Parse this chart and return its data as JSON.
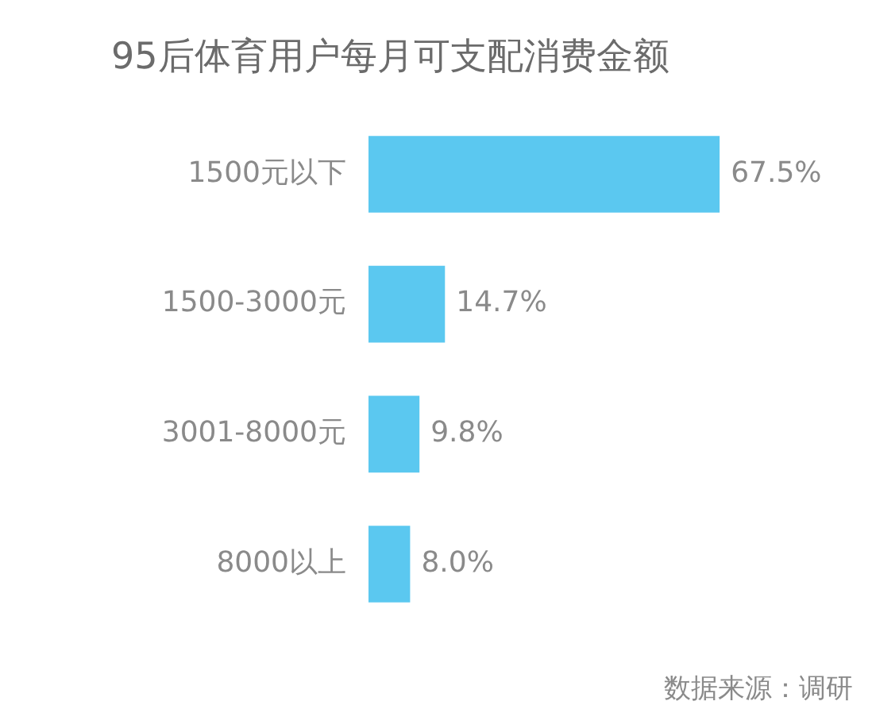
{
  "chart_data": {
    "type": "bar",
    "orientation": "horizontal",
    "title": "95后体育用户每月可支配消费金额",
    "categories": [
      "1500元以下",
      "1500-3000元",
      "3001-8000元",
      "8000以上"
    ],
    "values": [
      67.5,
      14.7,
      9.8,
      8.0
    ],
    "color": "#5bc8f0",
    "value_labels": [
      "67.5%",
      "14.7%",
      "9.8%",
      "8.0%"
    ],
    "tick_labels": "y",
    "grid": false,
    "legend": false,
    "annotations": [
      "数据来源：调研"
    ]
  }
}
